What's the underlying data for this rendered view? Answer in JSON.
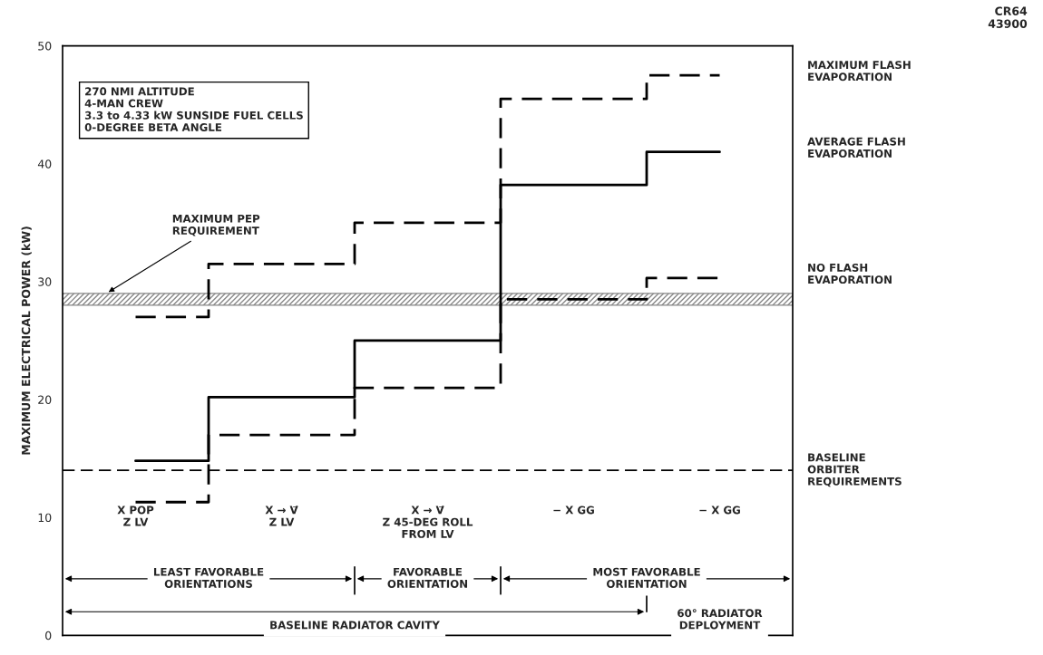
{
  "chart_data": {
    "type": "step",
    "ylabel": "MAXIMUM ELECTRICAL POWER (kW)",
    "categories": [
      "X POP\nZ LV",
      "X → V⃗\nZ LV",
      "X → V⃗\nZ 45-DEG ROLL\nFROM LV",
      "− X GG",
      "− X GG"
    ],
    "series": [
      {
        "name": "MAXIMUM FLASH\nEVAPORATION",
        "color": "#000000",
        "line_style": "dashed",
        "values": [
          27,
          31.5,
          35,
          45.5,
          47.5
        ]
      },
      {
        "name": "AVERAGE FLASH\nEVAPORATION",
        "color": "#000000",
        "line_style": "solid",
        "values": [
          14.8,
          20.2,
          25,
          38.2,
          41
        ]
      },
      {
        "name": "NO FLASH\nEVAPORATION",
        "color": "#000000",
        "line_style": "dashed",
        "values": [
          11.3,
          17,
          21,
          28.5,
          30.3
        ]
      }
    ],
    "ylim": [
      0,
      50
    ],
    "yticks": [
      0,
      10,
      20,
      30,
      40,
      50
    ],
    "grid": false,
    "legend": false,
    "ref_lines": [
      {
        "axis": "y",
        "value": 14,
        "label": "BASELINE\nORBITER\nREQUIREMENTS",
        "color": "#000000",
        "line_style": "dashed"
      }
    ],
    "bands": [
      {
        "axis": "y",
        "from": 28,
        "to": 29,
        "label": "MAXIMUM PEP\nREQUIREMENT",
        "color": "#888888"
      }
    ],
    "annotations": [
      "270 NMI ALTITUDE\n4-MAN CREW\n3.3 to 4.33 kW SUNSIDE FUEL CELLS\n0-DEGREE BETA ANGLE",
      "LEAST FAVORABLE\nORIENTATIONS",
      "FAVORABLE\nORIENTATION",
      "MOST FAVORABLE\nORIENTATION",
      "BASELINE RADIATOR CAVITY",
      "60° RADIATOR\nDEPLOYMENT",
      "CR64\n43900"
    ]
  }
}
